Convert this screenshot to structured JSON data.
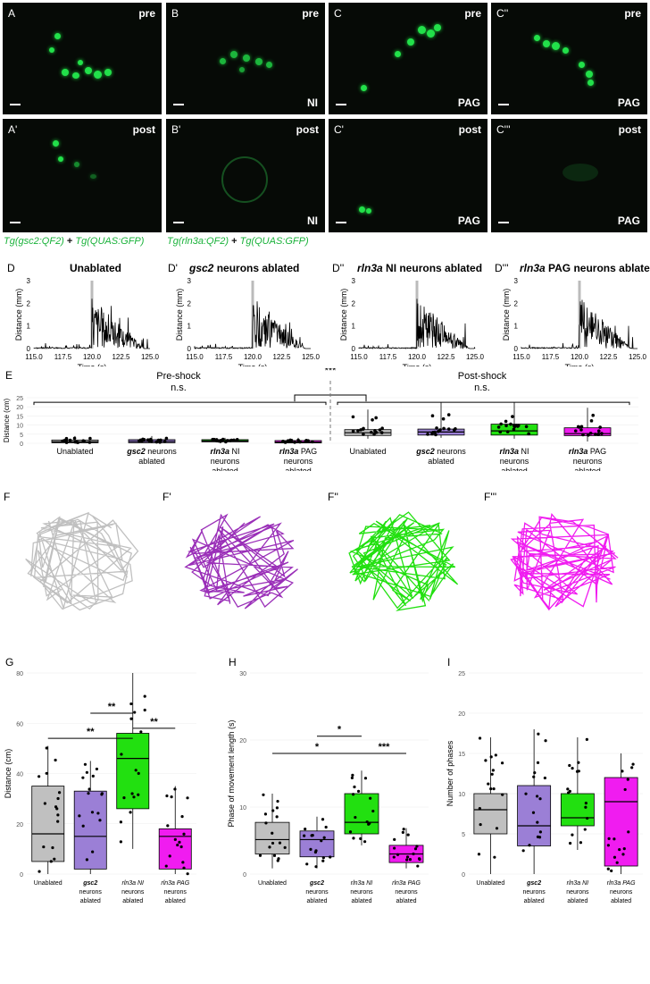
{
  "micro_panels": [
    {
      "label": "A",
      "condition": "pre",
      "region": ""
    },
    {
      "label": "B",
      "condition": "pre",
      "region": "NI"
    },
    {
      "label": "C",
      "condition": "pre",
      "region": "PAG"
    },
    {
      "label": "C''",
      "condition": "pre",
      "region": "PAG"
    },
    {
      "label": "A'",
      "condition": "post",
      "region": ""
    },
    {
      "label": "B'",
      "condition": "post",
      "region": "NI"
    },
    {
      "label": "C'",
      "condition": "post",
      "region": "PAG"
    },
    {
      "label": "C'''",
      "condition": "post",
      "region": "PAG"
    }
  ],
  "genotype_left": {
    "g1": "Tg(gsc2:QF2)",
    "plus": " + ",
    "g2": "Tg(QUAS:GFP)"
  },
  "genotype_right": {
    "g1": "Tg(rln3a:QF2)",
    "plus": " + ",
    "g2": "Tg(QUAS:GFP)"
  },
  "trace_panels": [
    {
      "label": "D",
      "title": "Unablated"
    },
    {
      "label": "D'",
      "title_italic": "gsc2",
      "title": " neurons ablated"
    },
    {
      "label": "D''",
      "title_italic": "rln3a",
      "title": " NI neurons ablated"
    },
    {
      "label": "D'''",
      "title_italic": "rln3a",
      "title": " PAG neurons ablated"
    }
  ],
  "trace_axes": {
    "ylabel": "Distance (mm)",
    "xlabel": "Time (s)",
    "xticks": [
      "115.0",
      "117.5",
      "120.0",
      "122.5",
      "125.0"
    ],
    "yticks": [
      "0",
      "1",
      "2",
      "3"
    ]
  },
  "panelE": {
    "label": "E",
    "pre_title": "Pre-shock",
    "pre_sig": "n.s.",
    "post_title": "Post-shock",
    "post_sig": "n.s.",
    "cross_sig": "***",
    "ylabel": "Distance (cm)",
    "yticks": [
      "0",
      "5",
      "10",
      "15",
      "20",
      "25"
    ],
    "groups": [
      {
        "l1": "Unablated",
        "l2": "",
        "l3": "",
        "it": ""
      },
      {
        "l1": "gsc2",
        "l1b": " neurons",
        "l2": "ablated",
        "it": "gsc2"
      },
      {
        "l1": "rln3a",
        "l1b": " NI",
        "l2": "neurons",
        "l3": "ablated"
      },
      {
        "l1": "rln3a",
        "l1b": " PAG",
        "l2": "neurons",
        "l3": "ablated"
      }
    ]
  },
  "track_labels": [
    "F",
    "F'",
    "F''",
    "F'''"
  ],
  "panelG": {
    "label": "G",
    "ylabel": "Distance (cm)",
    "yticks": [
      "0",
      "20",
      "40",
      "60",
      "80"
    ],
    "sigs": [
      "**",
      "**",
      "**"
    ]
  },
  "panelH": {
    "label": "H",
    "ylabel": "Phase of movement length (s)",
    "yticks": [
      "0",
      "10",
      "20",
      "30"
    ],
    "sigs": [
      "*",
      "*",
      "***"
    ]
  },
  "panelI": {
    "label": "I",
    "ylabel": "Number of phases",
    "yticks": [
      "0",
      "5",
      "10",
      "15",
      "20",
      "25"
    ]
  },
  "small_groups": {
    "g1": "Unablated",
    "g2a": "gsc2",
    "g2b": "neurons",
    "g2c": "ablated",
    "g3a": "rln3a NI",
    "g3b": "neurons",
    "g3c": "ablated",
    "g4a": "rln3a PAG",
    "g4b": "neurons",
    "g4c": "ablated"
  },
  "colors": {
    "unablated": "#c0c0c0",
    "gsc2": "#9b7fd6",
    "rln3a_NI": "#22e010",
    "rln3a_PAG": "#f01cf0",
    "gfp": "#22e04a"
  },
  "chart_data": [
    {
      "type": "box",
      "panel": "E",
      "ylim": [
        0,
        25
      ],
      "categories": [
        "Unablated",
        "gsc2 neurons ablated",
        "rln3a NI neurons ablated",
        "rln3a PAG neurons ablated",
        "Unablated",
        "gsc2 neurons ablated",
        "rln3a NI neurons ablated",
        "rln3a PAG neurons ablated"
      ],
      "series": [
        {
          "name": "Pre-shock",
          "boxes": [
            {
              "q1": 0.3,
              "med": 0.8,
              "q3": 1.8,
              "lo": 0,
              "hi": 4
            },
            {
              "q1": 0.3,
              "med": 1.0,
              "q3": 2.0,
              "lo": 0,
              "hi": 4
            },
            {
              "q1": 0.8,
              "med": 1.3,
              "q3": 2.0,
              "lo": 0.3,
              "hi": 3
            },
            {
              "q1": 0.2,
              "med": 0.6,
              "q3": 1.5,
              "lo": 0,
              "hi": 3
            }
          ]
        },
        {
          "name": "Post-shock",
          "boxes": [
            {
              "q1": 4.3,
              "med": 5.8,
              "q3": 7.5,
              "lo": 2.5,
              "hi": 18.5
            },
            {
              "q1": 4.5,
              "med": 6.2,
              "q3": 7.8,
              "lo": 3,
              "hi": 22.5
            },
            {
              "q1": 4.5,
              "med": 6.8,
              "q3": 10.5,
              "lo": 2.5,
              "hi": 22.5
            },
            {
              "q1": 4.2,
              "med": 5.3,
              "q3": 8.5,
              "lo": 1,
              "hi": 19.5
            }
          ]
        }
      ]
    },
    {
      "type": "box",
      "panel": "G",
      "ylim": [
        0,
        80
      ],
      "categories": [
        "Unablated",
        "gsc2 neurons ablated",
        "rln3a NI neurons ablated",
        "rln3a PAG neurons ablated"
      ],
      "boxes": [
        {
          "q1": 5,
          "med": 16,
          "q3": 35,
          "lo": 0,
          "hi": 51
        },
        {
          "q1": 2,
          "med": 15,
          "q3": 33,
          "lo": 0,
          "hi": 45
        },
        {
          "q1": 26,
          "med": 46,
          "q3": 56,
          "lo": 10,
          "hi": 80
        },
        {
          "q1": 2,
          "med": 15,
          "q3": 18,
          "lo": 0,
          "hi": 35
        }
      ]
    },
    {
      "type": "box",
      "panel": "H",
      "ylim": [
        0,
        35
      ],
      "categories": [
        "Unablated",
        "gsc2 neurons ablated",
        "rln3a NI neurons ablated",
        "rln3a PAG neurons ablated"
      ],
      "boxes": [
        {
          "q1": 3.5,
          "med": 6,
          "q3": 9,
          "lo": 1,
          "hi": 14
        },
        {
          "q1": 3,
          "med": 6,
          "q3": 7.5,
          "lo": 1,
          "hi": 10
        },
        {
          "q1": 7,
          "med": 9,
          "q3": 14,
          "lo": 5,
          "hi": 18
        },
        {
          "q1": 2,
          "med": 3.5,
          "q3": 5,
          "lo": 1,
          "hi": 8
        }
      ]
    },
    {
      "type": "box",
      "panel": "I",
      "ylim": [
        0,
        25
      ],
      "categories": [
        "Unablated",
        "gsc2 neurons ablated",
        "rln3a NI neurons ablated",
        "rln3a PAG neurons ablated"
      ],
      "boxes": [
        {
          "q1": 5,
          "med": 8,
          "q3": 10,
          "lo": 0,
          "hi": 17
        },
        {
          "q1": 3.5,
          "med": 6,
          "q3": 11,
          "lo": 0,
          "hi": 18
        },
        {
          "q1": 6,
          "med": 7,
          "q3": 10,
          "lo": 3,
          "hi": 17
        },
        {
          "q1": 1,
          "med": 9,
          "q3": 12,
          "lo": 0,
          "hi": 15
        }
      ]
    }
  ]
}
